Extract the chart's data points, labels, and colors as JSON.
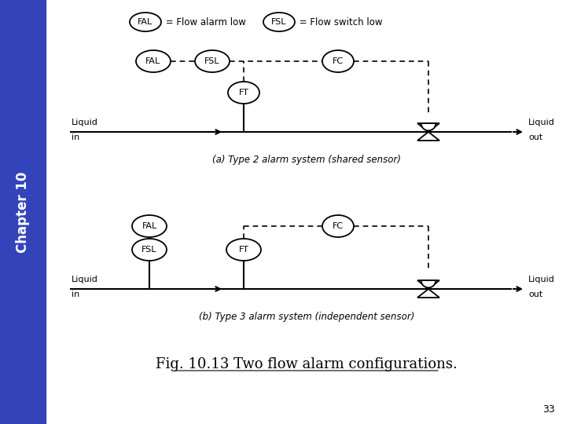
{
  "bg_color": "#e8e8e8",
  "sidebar_color": "#3344bb",
  "content_bg": "#f5f5f0",
  "title": "Fig. 10.13 Two flow alarm configurations.",
  "page_number": "33",
  "chapter_label": "Chapter 10",
  "caption_a": "(a) Type 2 alarm system (shared sensor)",
  "caption_b": "(b) Type 3 alarm system (independent sensor)",
  "legend_fal": "FAL",
  "legend_fsl": "FSL",
  "legend_fal_text": " = Flow alarm low",
  "legend_fsl_text": " = Flow switch low"
}
